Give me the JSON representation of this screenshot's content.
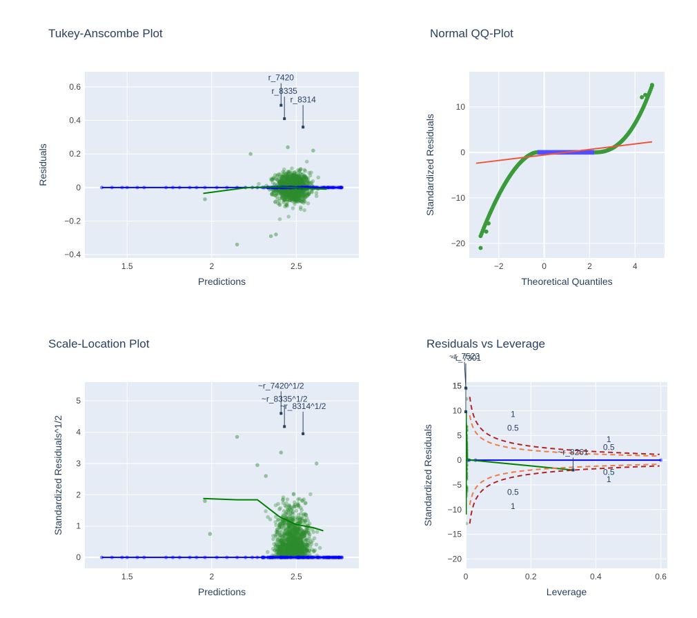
{
  "chart_data": [
    {
      "type": "scatter",
      "title": "Tukey-Anscombe Plot",
      "xlabel": "Predictions",
      "ylabel": "Residuals",
      "xlim": [
        1.25,
        2.87
      ],
      "ylim": [
        -0.42,
        0.69
      ],
      "xticks": [
        1.5,
        2,
        2.5
      ],
      "xtick_labels": [
        "1.5",
        "2",
        "2.5"
      ],
      "yticks": [
        -0.4,
        -0.2,
        0,
        0.2,
        0.4,
        0.6
      ],
      "ytick_labels": [
        "−0.4",
        "−0.2",
        "0",
        "0.2",
        "0.4",
        "0.6"
      ],
      "grid": true,
      "series": [
        {
          "kind": "green-points",
          "x_center": 2.48,
          "x_spread": 0.05,
          "y_spread": 0.045
        },
        {
          "kind": "blue-baseline",
          "x": [
            1.35,
            1.41,
            1.47,
            1.5,
            1.56,
            1.6,
            1.73,
            1.77,
            1.81,
            1.87,
            1.91,
            1.96,
            2.03,
            2.09,
            2.15,
            2.2,
            2.24,
            2.27,
            2.3,
            2.33,
            2.36,
            2.39,
            2.42,
            2.45,
            2.48,
            2.51,
            2.54,
            2.57,
            2.6,
            2.63,
            2.66,
            2.69,
            2.72,
            2.75,
            2.77
          ],
          "y": 0
        },
        {
          "kind": "green-smoother",
          "x": [
            1.95,
            2.1,
            2.2,
            2.3,
            2.4,
            2.5,
            2.6,
            2.68
          ],
          "y": [
            -0.035,
            -0.015,
            -0.002,
            0.002,
            0.003,
            -0.002,
            -0.008,
            -0.01
          ]
        }
      ],
      "annotations": [
        {
          "label": "r_7420",
          "x": 2.41,
          "y": 0.49
        },
        {
          "label": "r_8335",
          "x": 2.43,
          "y": 0.41
        },
        {
          "label": "r_8314",
          "x": 2.54,
          "y": 0.36
        }
      ]
    },
    {
      "type": "scatter",
      "title": "Normal QQ-Plot",
      "xlabel": "Theoretical Quantiles",
      "ylabel": "Standardized Residuals",
      "xlim": [
        -3.3,
        5.3
      ],
      "ylim": [
        -23.2,
        17.7
      ],
      "xticks": [
        -2,
        0,
        2,
        4
      ],
      "xtick_labels": [
        "−2",
        "0",
        "2",
        "4"
      ],
      "yticks": [
        -20,
        -10,
        0,
        10
      ],
      "ytick_labels": [
        "−20",
        "−10",
        "0",
        "10"
      ],
      "grid": true,
      "series": [
        {
          "kind": "qq-points",
          "x_range": [
            -2.8,
            4.75
          ],
          "y_range": [
            -21,
            14.8
          ]
        },
        {
          "kind": "blue-segment",
          "x": [
            -0.3,
            2.2
          ],
          "y": 0
        },
        {
          "kind": "reference-line",
          "x": [
            -3,
            4.75
          ],
          "y": [
            -2.4,
            2.3
          ]
        }
      ]
    },
    {
      "type": "scatter",
      "title": "Scale-Location Plot",
      "xlabel": "Predictions",
      "ylabel": "Standardized Residuals^1/2",
      "xlim": [
        1.25,
        2.87
      ],
      "ylim": [
        -0.35,
        5.6
      ],
      "xticks": [
        1.5,
        2,
        2.5
      ],
      "xtick_labels": [
        "1.5",
        "2",
        "2.5"
      ],
      "yticks": [
        0,
        1,
        2,
        3,
        4,
        5
      ],
      "ytick_labels": [
        "0",
        "1",
        "2",
        "3",
        "4",
        "5"
      ],
      "grid": true,
      "series": [
        {
          "kind": "green-points",
          "x_center": 2.48,
          "x_spread": 0.05,
          "y_spread": 0.7
        },
        {
          "kind": "blue-baseline",
          "x": [
            1.35,
            1.41,
            1.47,
            1.5,
            1.56,
            1.6,
            1.73,
            1.77,
            1.81,
            1.87,
            1.91,
            1.96,
            2.03,
            2.09,
            2.15,
            2.2,
            2.24,
            2.27,
            2.3,
            2.33,
            2.36,
            2.39,
            2.42,
            2.45,
            2.48,
            2.51,
            2.54,
            2.57,
            2.6,
            2.63,
            2.66,
            2.69,
            2.72,
            2.75,
            2.77
          ],
          "y": 0
        },
        {
          "kind": "green-smoother",
          "x": [
            1.95,
            2.15,
            2.27,
            2.4,
            2.5,
            2.6,
            2.66
          ],
          "y": [
            1.88,
            1.84,
            1.84,
            1.3,
            1.05,
            0.95,
            0.85
          ]
        }
      ],
      "annotations": [
        {
          "label": "~r_7420^1/2",
          "x": 2.41,
          "y": 4.6
        },
        {
          "label": "~r_8335^1/2",
          "x": 2.43,
          "y": 4.18
        },
        {
          "label": "~r_8314^1/2",
          "x": 2.54,
          "y": 3.95
        }
      ]
    },
    {
      "type": "scatter",
      "title": "Residuals vs Leverage",
      "xlabel": "Leverage",
      "ylabel": "Standardized Residuals",
      "xlim": [
        0,
        0.62
      ],
      "ylim": [
        -21.9,
        15.8
      ],
      "xticks": [
        0,
        0.2,
        0.4,
        0.6
      ],
      "xtick_labels": [
        "0",
        "0.2",
        "0.4",
        "0.6"
      ],
      "yticks": [
        -20,
        -15,
        -10,
        -5,
        0,
        5,
        10,
        15
      ],
      "ytick_labels": [
        "−20",
        "−15",
        "−10",
        "−5",
        "0",
        "5",
        "10",
        "15"
      ],
      "grid": true,
      "series": [
        {
          "kind": "blue-baseline",
          "x": [
            0,
            0.005,
            0.01,
            0.03,
            0.6
          ],
          "y": 0
        },
        {
          "kind": "green-smoother",
          "x": [
            0.0,
            0.005,
            0.02,
            0.33
          ],
          "y": [
            9.8,
            0.2,
            0,
            -2.0
          ]
        },
        {
          "kind": "cooks-distance",
          "contours": [
            0.5,
            1
          ],
          "colors": [
            "#ef7b45",
            "#b22222"
          ]
        }
      ],
      "contour_labels": [
        {
          "label": "1",
          "x": 0.145,
          "y": 9.3
        },
        {
          "label": "0.5",
          "x": 0.145,
          "y": 6.5
        },
        {
          "label": "1",
          "x": 0.44,
          "y": 4.2
        },
        {
          "label": "0.5",
          "x": 0.44,
          "y": 2.6
        },
        {
          "label": "0.5",
          "x": 0.44,
          "y": -2.4
        },
        {
          "label": "1",
          "x": 0.44,
          "y": -3.9
        },
        {
          "label": "0.5",
          "x": 0.145,
          "y": -6.5
        },
        {
          "label": "1",
          "x": 0.145,
          "y": -9.3
        }
      ],
      "annotations": [
        {
          "label": "~r_7301",
          "x": 0,
          "y": 9.8
        },
        {
          "label": "~r_7523",
          "x": 0,
          "y": 14.6
        },
        {
          "label": "~r_8261",
          "x": 0.33,
          "y": -2.0
        }
      ],
      "stray_ytick": "15"
    }
  ],
  "colors": {
    "plot_bg": "#e5ecf6",
    "grid": "#ffffff",
    "text": "#2a3f5f",
    "axis_text": "#444444",
    "green": "#2e8b2e",
    "dark_green": "#008000",
    "blue": "#0000ff",
    "qq_green": "#3b9a3b",
    "qq_blue": "#5050ff",
    "red_line": "#ef553b",
    "annot": "#2a3f5f"
  }
}
